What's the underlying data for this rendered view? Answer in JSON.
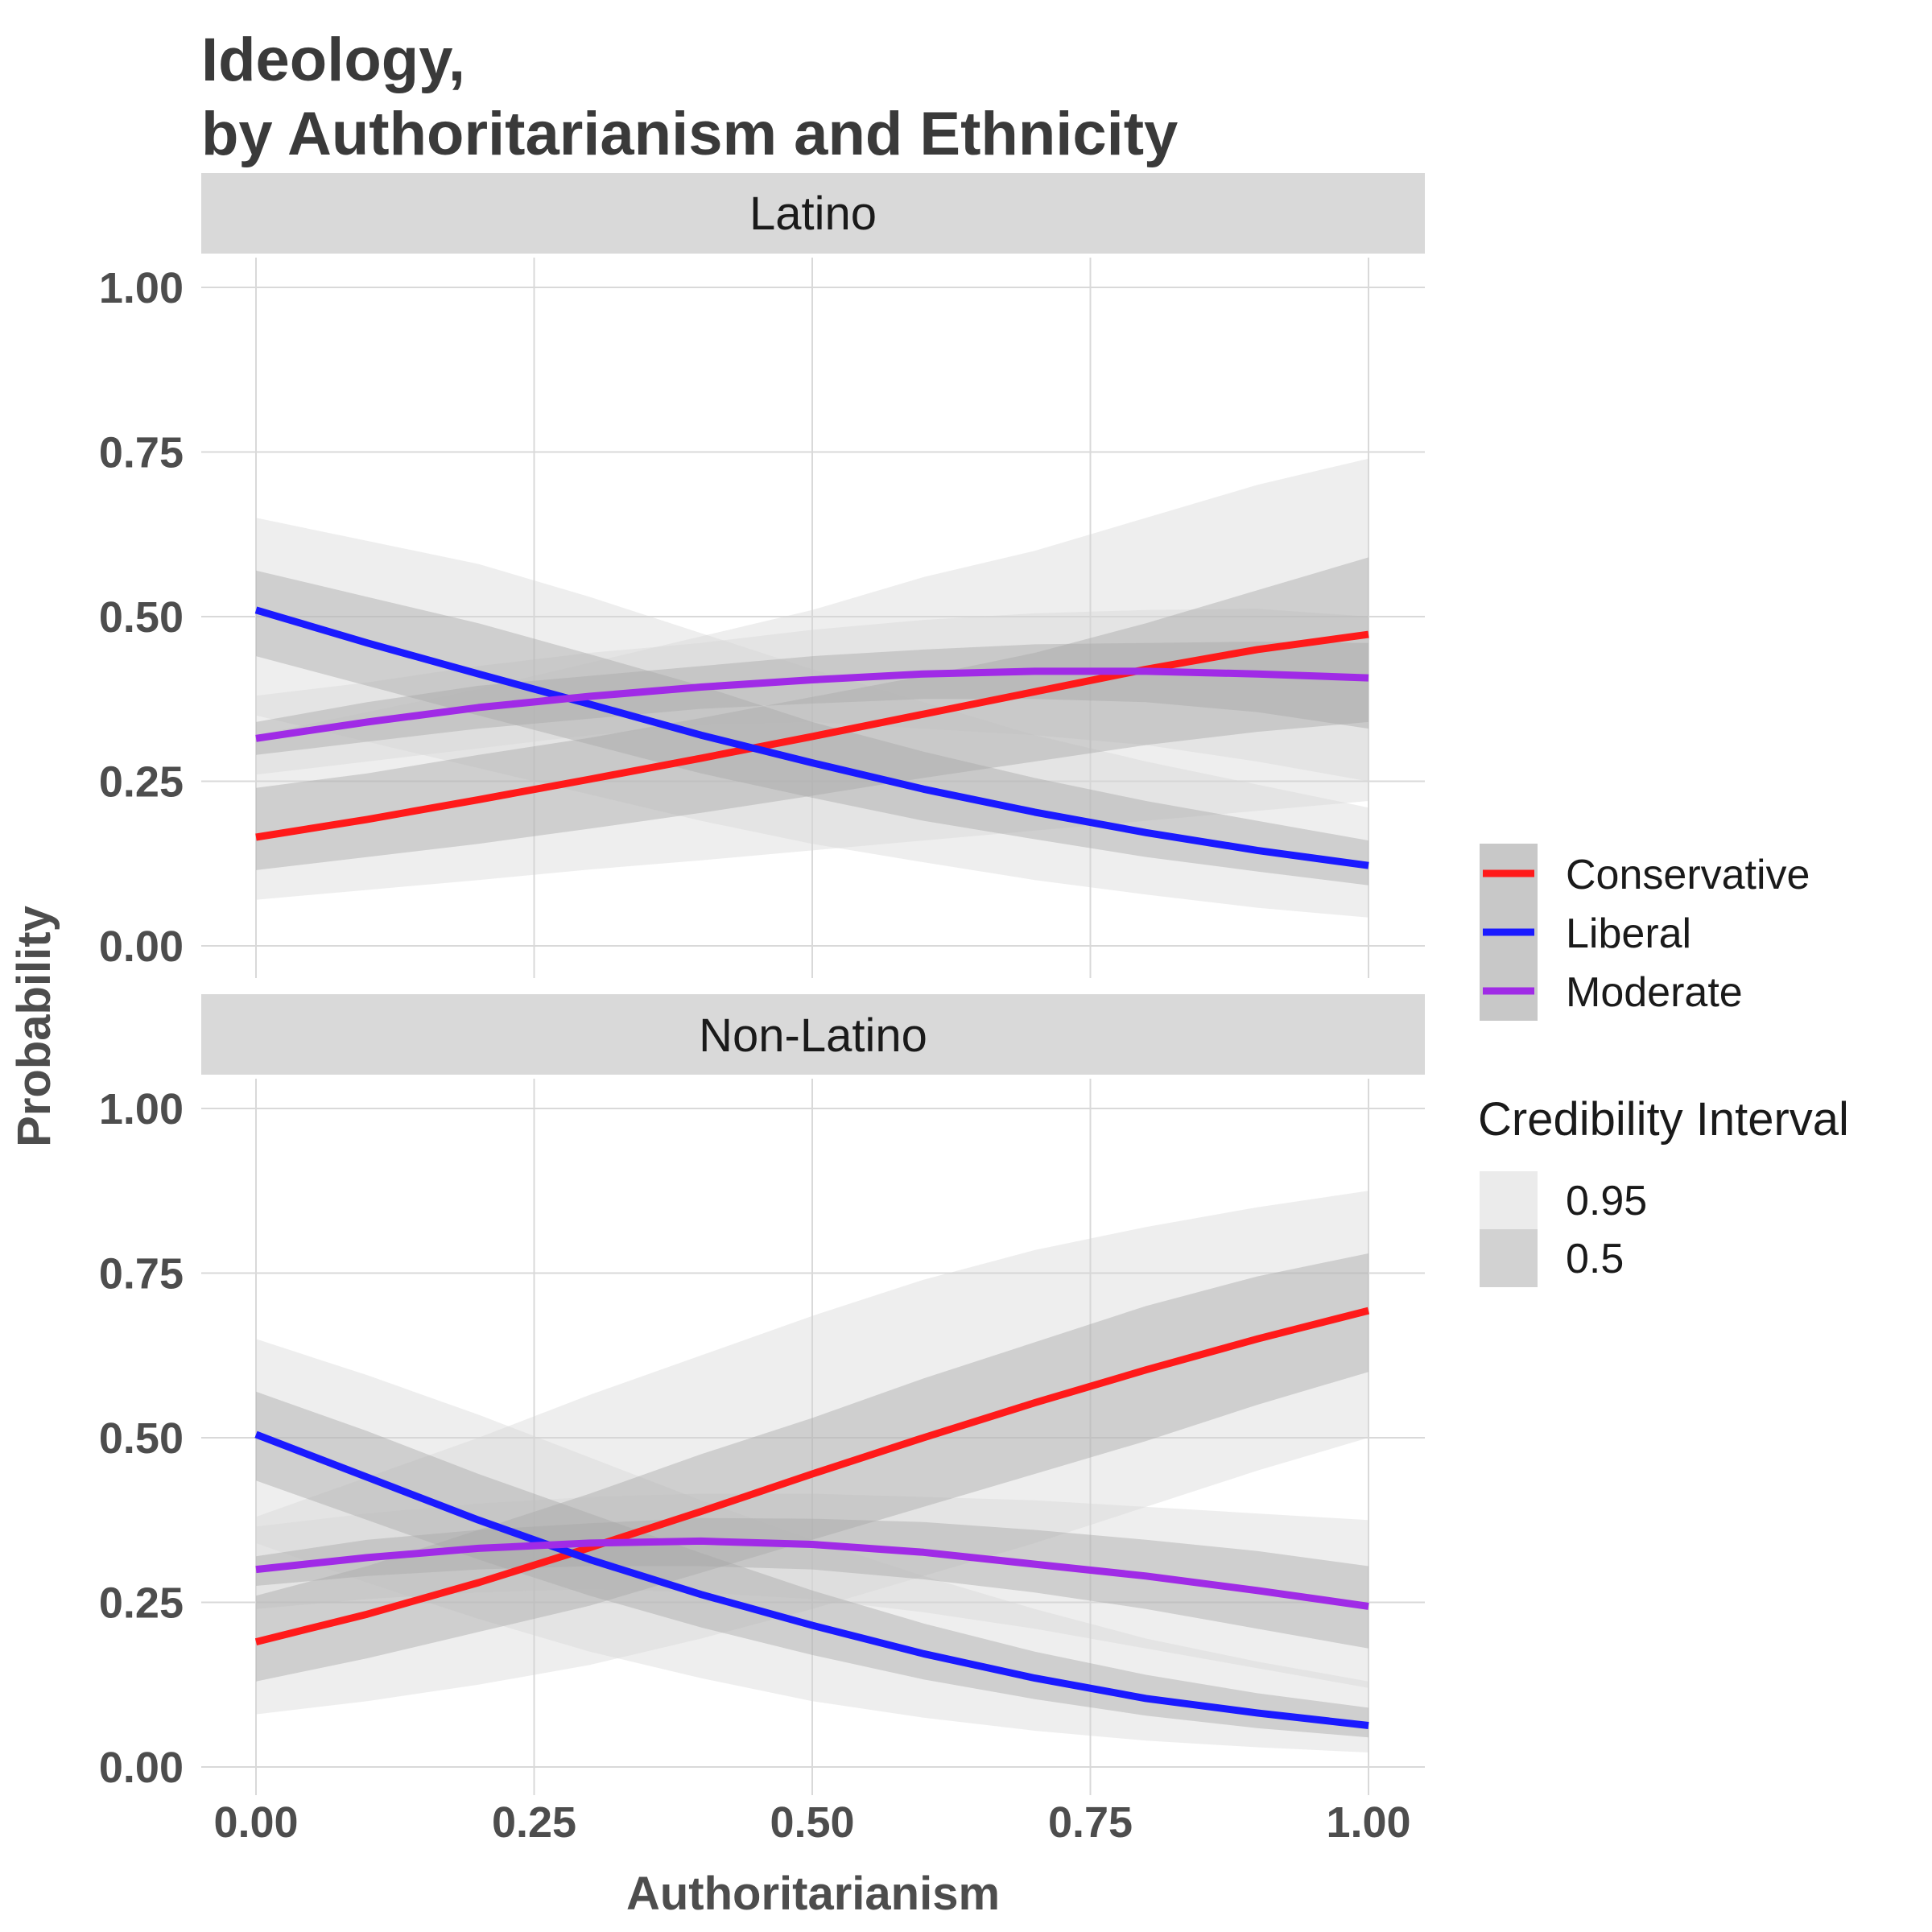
{
  "chart_data": {
    "type": "line",
    "title": [
      "Ideology,",
      "by Authoritarianism and Ethnicity"
    ],
    "xlabel": "Authoritarianism",
    "ylabel": "Probability",
    "xlim": [
      0,
      1
    ],
    "ylim": [
      0,
      1
    ],
    "x_ticks": [
      "0.00",
      "0.25",
      "0.50",
      "0.75",
      "1.00"
    ],
    "y_ticks": [
      "0.00",
      "0.25",
      "0.50",
      "0.75",
      "1.00"
    ],
    "grid": true,
    "legend": {
      "placement": "right",
      "series_entries": [
        "Conservative",
        "Liberal",
        "Moderate"
      ],
      "interval_title": "Credibility Interval",
      "interval_entries": [
        "0.95",
        "0.5"
      ]
    },
    "colors": {
      "Conservative": "#ff1a1a",
      "Liberal": "#1a1aff",
      "Moderate": "#a02be6",
      "band95": "#ebebeb",
      "band50": "#cccccc",
      "strip": "#d9d9d9",
      "grid": "#d9d9d9"
    },
    "x": [
      0,
      0.1,
      0.2,
      0.3,
      0.4,
      0.5,
      0.6,
      0.7,
      0.8,
      0.9,
      1.0
    ],
    "panels": [
      {
        "strip": "Latino",
        "series": [
          {
            "name": "Conservative",
            "values": [
              0.165,
              0.192,
              0.222,
              0.253,
              0.285,
              0.318,
              0.352,
              0.386,
              0.42,
              0.45,
              0.473
            ],
            "ci50": [
              [
                0.115,
                0.24
              ],
              [
                0.135,
                0.262
              ],
              [
                0.155,
                0.29
              ],
              [
                0.178,
                0.316
              ],
              [
                0.202,
                0.346
              ],
              [
                0.228,
                0.378
              ],
              [
                0.255,
                0.41
              ],
              [
                0.28,
                0.445
              ],
              [
                0.305,
                0.49
              ],
              [
                0.325,
                0.54
              ],
              [
                0.34,
                0.59
              ]
            ],
            "ci95": [
              [
                0.07,
                0.32
              ],
              [
                0.085,
                0.355
              ],
              [
                0.1,
                0.39
              ],
              [
                0.116,
                0.43
              ],
              [
                0.13,
                0.47
              ],
              [
                0.145,
                0.51
              ],
              [
                0.16,
                0.56
              ],
              [
                0.175,
                0.6
              ],
              [
                0.19,
                0.65
              ],
              [
                0.205,
                0.7
              ],
              [
                0.22,
                0.74
              ]
            ]
          },
          {
            "name": "Liberal",
            "values": [
              0.51,
              0.46,
              0.413,
              0.367,
              0.32,
              0.278,
              0.238,
              0.203,
              0.172,
              0.145,
              0.122
            ],
            "ci50": [
              [
                0.44,
                0.57
              ],
              [
                0.395,
                0.53
              ],
              [
                0.35,
                0.49
              ],
              [
                0.306,
                0.443
              ],
              [
                0.262,
                0.395
              ],
              [
                0.225,
                0.34
              ],
              [
                0.19,
                0.295
              ],
              [
                0.162,
                0.255
              ],
              [
                0.135,
                0.22
              ],
              [
                0.113,
                0.19
              ],
              [
                0.092,
                0.16
              ]
            ],
            "ci95": [
              [
                0.35,
                0.65
              ],
              [
                0.31,
                0.615
              ],
              [
                0.27,
                0.58
              ],
              [
                0.23,
                0.53
              ],
              [
                0.19,
                0.475
              ],
              [
                0.155,
                0.42
              ],
              [
                0.127,
                0.37
              ],
              [
                0.1,
                0.32
              ],
              [
                0.078,
                0.28
              ],
              [
                0.058,
                0.245
              ],
              [
                0.043,
                0.21
              ]
            ]
          },
          {
            "name": "Moderate",
            "values": [
              0.315,
              0.34,
              0.362,
              0.379,
              0.393,
              0.404,
              0.413,
              0.417,
              0.417,
              0.413,
              0.407
            ],
            "ci50": [
              [
                0.29,
                0.34
              ],
              [
                0.31,
                0.37
              ],
              [
                0.33,
                0.395
              ],
              [
                0.345,
                0.41
              ],
              [
                0.36,
                0.425
              ],
              [
                0.368,
                0.44
              ],
              [
                0.375,
                0.45
              ],
              [
                0.375,
                0.458
              ],
              [
                0.37,
                0.46
              ],
              [
                0.355,
                0.462
              ],
              [
                0.33,
                0.46
              ]
            ],
            "ci95": [
              [
                0.26,
                0.38
              ],
              [
                0.28,
                0.4
              ],
              [
                0.3,
                0.425
              ],
              [
                0.32,
                0.445
              ],
              [
                0.335,
                0.46
              ],
              [
                0.34,
                0.48
              ],
              [
                0.33,
                0.495
              ],
              [
                0.32,
                0.505
              ],
              [
                0.305,
                0.51
              ],
              [
                0.28,
                0.512
              ],
              [
                0.25,
                0.5
              ]
            ]
          }
        ]
      },
      {
        "strip": "Non-Latino",
        "series": [
          {
            "name": "Conservative",
            "values": [
              0.19,
              0.232,
              0.28,
              0.333,
              0.388,
              0.445,
              0.5,
              0.553,
              0.603,
              0.65,
              0.693
            ],
            "ci50": [
              [
                0.13,
                0.26
              ],
              [
                0.165,
                0.305
              ],
              [
                0.205,
                0.36
              ],
              [
                0.245,
                0.415
              ],
              [
                0.295,
                0.475
              ],
              [
                0.345,
                0.53
              ],
              [
                0.395,
                0.59
              ],
              [
                0.445,
                0.645
              ],
              [
                0.495,
                0.7
              ],
              [
                0.55,
                0.745
              ],
              [
                0.6,
                0.78
              ]
            ],
            "ci95": [
              [
                0.08,
                0.38
              ],
              [
                0.1,
                0.44
              ],
              [
                0.125,
                0.5
              ],
              [
                0.155,
                0.565
              ],
              [
                0.195,
                0.625
              ],
              [
                0.24,
                0.685
              ],
              [
                0.29,
                0.74
              ],
              [
                0.34,
                0.785
              ],
              [
                0.395,
                0.82
              ],
              [
                0.45,
                0.85
              ],
              [
                0.5,
                0.875
              ]
            ]
          },
          {
            "name": "Liberal",
            "values": [
              0.505,
              0.44,
              0.375,
              0.315,
              0.262,
              0.215,
              0.172,
              0.135,
              0.104,
              0.082,
              0.063
            ],
            "ci50": [
              [
                0.435,
                0.57
              ],
              [
                0.375,
                0.51
              ],
              [
                0.315,
                0.445
              ],
              [
                0.26,
                0.385
              ],
              [
                0.212,
                0.325
              ],
              [
                0.17,
                0.268
              ],
              [
                0.133,
                0.218
              ],
              [
                0.103,
                0.175
              ],
              [
                0.078,
                0.14
              ],
              [
                0.059,
                0.112
              ],
              [
                0.045,
                0.09
              ]
            ],
            "ci95": [
              [
                0.34,
                0.65
              ],
              [
                0.28,
                0.595
              ],
              [
                0.225,
                0.535
              ],
              [
                0.175,
                0.47
              ],
              [
                0.135,
                0.405
              ],
              [
                0.1,
                0.345
              ],
              [
                0.075,
                0.29
              ],
              [
                0.055,
                0.24
              ],
              [
                0.04,
                0.195
              ],
              [
                0.03,
                0.16
              ],
              [
                0.022,
                0.13
              ]
            ]
          },
          {
            "name": "Moderate",
            "values": [
              0.3,
              0.318,
              0.332,
              0.34,
              0.343,
              0.338,
              0.326,
              0.308,
              0.29,
              0.268,
              0.244
            ],
            "ci50": [
              [
                0.275,
                0.32
              ],
              [
                0.29,
                0.345
              ],
              [
                0.3,
                0.36
              ],
              [
                0.305,
                0.37
              ],
              [
                0.305,
                0.378
              ],
              [
                0.3,
                0.377
              ],
              [
                0.285,
                0.372
              ],
              [
                0.265,
                0.36
              ],
              [
                0.24,
                0.345
              ],
              [
                0.21,
                0.328
              ],
              [
                0.18,
                0.305
              ]
            ],
            "ci95": [
              [
                0.24,
                0.365
              ],
              [
                0.255,
                0.385
              ],
              [
                0.265,
                0.4
              ],
              [
                0.27,
                0.41
              ],
              [
                0.265,
                0.415
              ],
              [
                0.255,
                0.415
              ],
              [
                0.235,
                0.41
              ],
              [
                0.21,
                0.405
              ],
              [
                0.18,
                0.395
              ],
              [
                0.15,
                0.385
              ],
              [
                0.12,
                0.375
              ]
            ]
          }
        ]
      }
    ]
  }
}
